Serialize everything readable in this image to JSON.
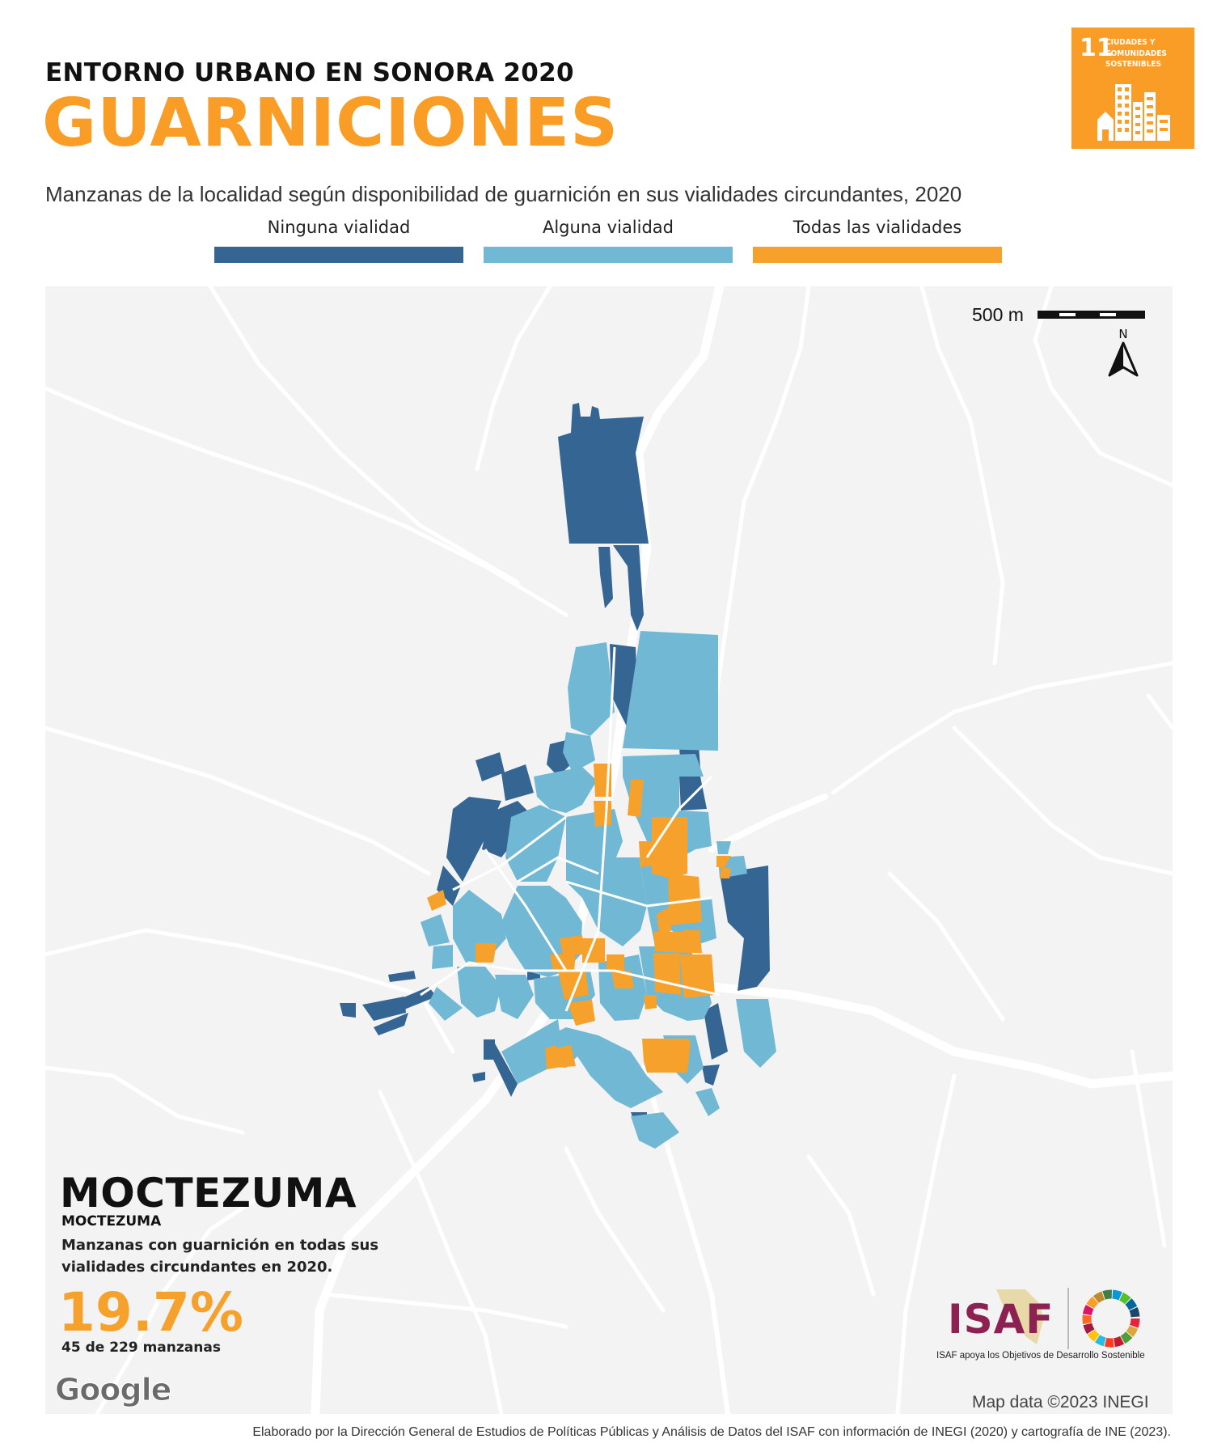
{
  "header": {
    "kicker": "ENTORNO URBANO EN SONORA 2020",
    "title": "GUARNICIONES",
    "subtitle": "Manzanas de la localidad según disponibilidad de guarnición en sus vialidades circundantes, 2020"
  },
  "sdg_badge": {
    "number": "11",
    "label": "CIUDADES Y COMUNIDADES SOSTENIBLES",
    "color": "#f99d26"
  },
  "legend": [
    {
      "label": "Ninguna vialidad",
      "color": "#356593"
    },
    {
      "label": "Alguna vialidad",
      "color": "#70b8d4"
    },
    {
      "label": "Todas las vialidades",
      "color": "#f6a12b"
    }
  ],
  "map": {
    "background_color": "#f3f3f3",
    "road_color": "#ffffff",
    "scale_label": "500 m",
    "north_label": "N",
    "attribution": "Map data ©2023 INEGI",
    "google_label": "Google"
  },
  "locality": {
    "municipality": "MOCTEZUMA",
    "locality": "MOCTEZUMA",
    "description": "Manzanas con guarnición en todas sus vialidades circundantes en 2020.",
    "percentage": "19.7%",
    "count_text": "45 de 229 manzanas"
  },
  "isaf": {
    "name": "ISAF",
    "tagline": "ISAF apoya los Objetivos de Desarrollo Sostenible",
    "color": "#8c2252"
  },
  "footer": {
    "credit": "Elaborado por la Dirección General de Estudios de Políticas Públicas y Análisis de Datos del ISAF con información de INEGI (2020) y cartografía de INE (2023)."
  }
}
